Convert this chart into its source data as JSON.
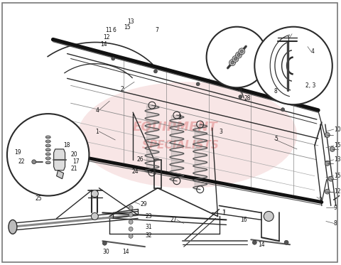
{
  "bg_color": "#ffffff",
  "lc": "#2a2a2a",
  "wm_color1": "#cc4444",
  "wm_color2": "#ddaaaa",
  "figw": 4.8,
  "figh": 3.73,
  "dpi": 100
}
